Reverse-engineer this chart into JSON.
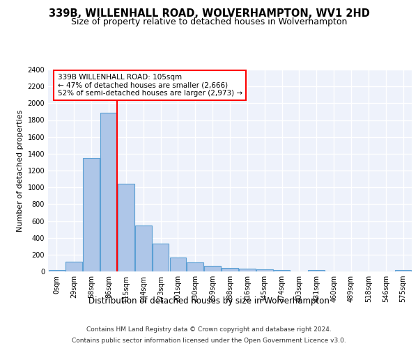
{
  "title1": "339B, WILLENHALL ROAD, WOLVERHAMPTON, WV1 2HD",
  "title2": "Size of property relative to detached houses in Wolverhampton",
  "xlabel": "Distribution of detached houses by size in Wolverhampton",
  "ylabel": "Number of detached properties",
  "footer1": "Contains HM Land Registry data © Crown copyright and database right 2024.",
  "footer2": "Contains public sector information licensed under the Open Government Licence v3.0.",
  "bin_labels": [
    "0sqm",
    "29sqm",
    "58sqm",
    "86sqm",
    "115sqm",
    "144sqm",
    "173sqm",
    "201sqm",
    "230sqm",
    "259sqm",
    "288sqm",
    "316sqm",
    "345sqm",
    "374sqm",
    "403sqm",
    "431sqm",
    "460sqm",
    "489sqm",
    "518sqm",
    "546sqm",
    "575sqm"
  ],
  "bar_heights": [
    20,
    120,
    1350,
    1890,
    1040,
    545,
    335,
    165,
    105,
    65,
    40,
    30,
    25,
    15,
    2,
    20,
    2,
    2,
    2,
    2,
    20
  ],
  "bar_color": "#aec6e8",
  "bar_edgecolor": "#5a9fd4",
  "bar_linewidth": 0.8,
  "property_line_x": 3.5,
  "property_line_color": "red",
  "annotation_text": "339B WILLENHALL ROAD: 105sqm\n← 47% of detached houses are smaller (2,666)\n52% of semi-detached houses are larger (2,973) →",
  "annotation_box_color": "white",
  "annotation_box_edgecolor": "red",
  "ylim": [
    0,
    2400
  ],
  "yticks": [
    0,
    200,
    400,
    600,
    800,
    1000,
    1200,
    1400,
    1600,
    1800,
    2000,
    2200,
    2400
  ],
  "bg_color": "#eef2fb",
  "grid_color": "white",
  "title1_fontsize": 10.5,
  "title2_fontsize": 9,
  "xlabel_fontsize": 8.5,
  "ylabel_fontsize": 8,
  "tick_fontsize": 7,
  "footer_fontsize": 6.5,
  "annotation_fontsize": 7.5
}
